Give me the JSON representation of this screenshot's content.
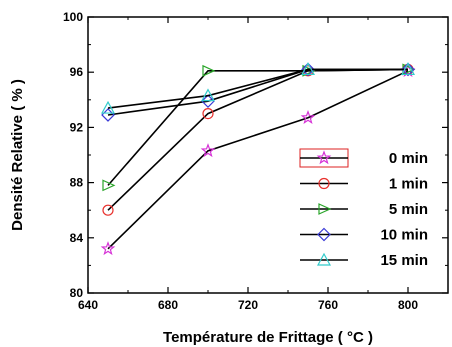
{
  "chart_data": {
    "type": "line",
    "xlabel": "Température de Frittage ( °C )",
    "ylabel": "Densité  Relative ( % )",
    "xlim": [
      640,
      820
    ],
    "ylim": [
      80,
      100
    ],
    "xticks": [
      640,
      680,
      720,
      760,
      800
    ],
    "yticks": [
      80,
      84,
      88,
      92,
      96,
      100
    ],
    "grid": false,
    "legend_position": "bottom-right",
    "x": [
      650,
      700,
      750,
      800
    ],
    "series": [
      {
        "name": "0 min",
        "marker": "star",
        "color": "#d633d6",
        "values": [
          83.2,
          90.3,
          92.7,
          96.1
        ]
      },
      {
        "name": "1 min",
        "marker": "circle",
        "color": "#e8312d",
        "values": [
          86.0,
          93.0,
          96.1,
          96.2
        ]
      },
      {
        "name": "5 min",
        "marker": "triangle-right",
        "color": "#2aa52a",
        "values": [
          87.8,
          96.1,
          96.1,
          96.2
        ]
      },
      {
        "name": "10 min",
        "marker": "diamond",
        "color": "#3a3ad6",
        "values": [
          92.9,
          93.9,
          96.2,
          96.2
        ]
      },
      {
        "name": "15 min",
        "marker": "triangle-up",
        "color": "#33cccc",
        "values": [
          93.4,
          94.3,
          96.2,
          96.2
        ]
      }
    ]
  }
}
